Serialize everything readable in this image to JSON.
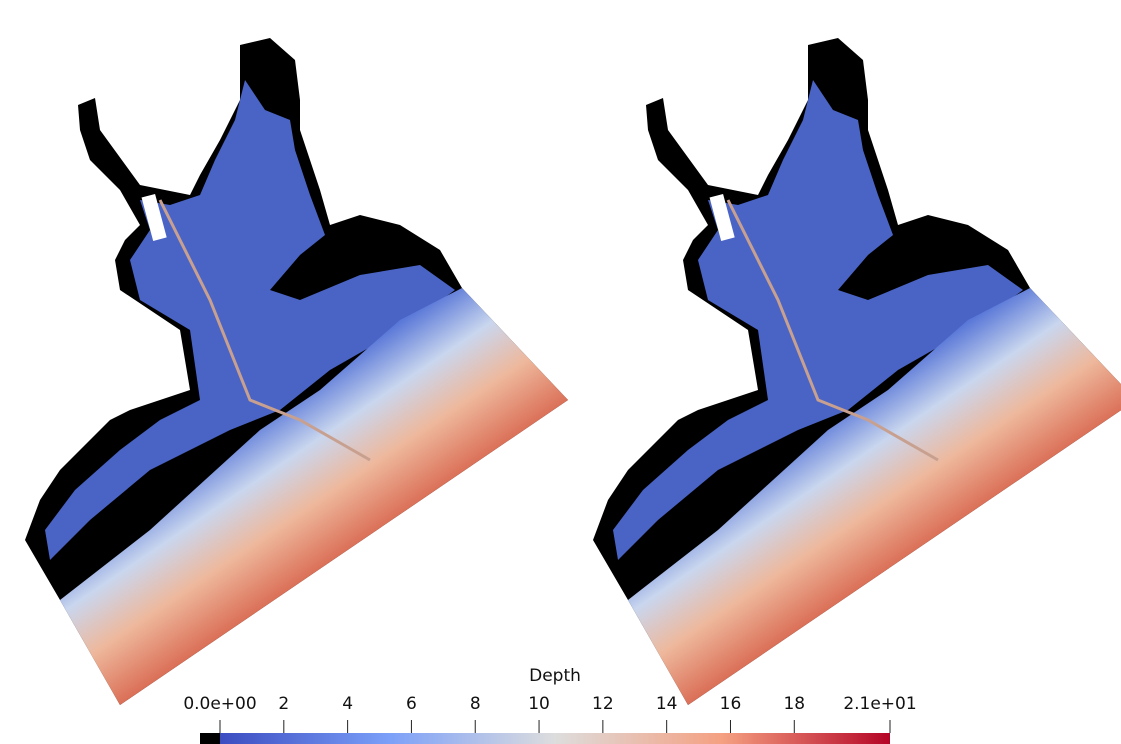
{
  "colorbar": {
    "title": "Depth",
    "lim": [
      0,
      21
    ],
    "ticks": [
      {
        "value": 0,
        "label": "0.0e+00"
      },
      2,
      4,
      6,
      8,
      10,
      12,
      14,
      16,
      18,
      {
        "value": 21,
        "label": "2.1e+01"
      }
    ]
  }
}
